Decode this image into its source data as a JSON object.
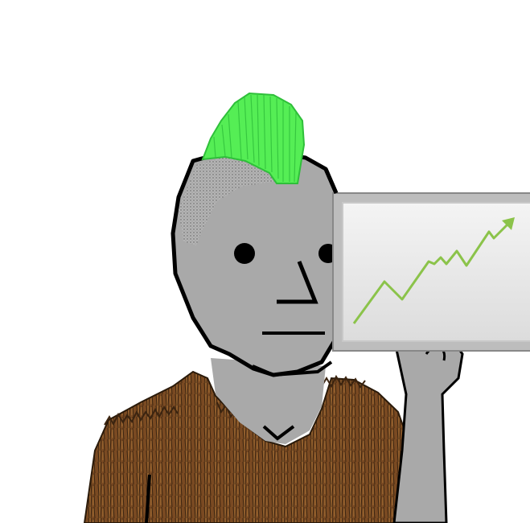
{
  "scene": {
    "subject": "npc-wojak-punk",
    "colors": {
      "background": "#ffffff",
      "skin": "#a9a9a9",
      "outline": "#000000",
      "mohawk": "#55ee55",
      "mohawk_dark": "#2fbf3a",
      "fur": "#7a4a22",
      "fur_dark": "#3b2410",
      "fur_light": "#b07a3c",
      "card_face": "#e8e8e8",
      "card_edge": "#b8b8b8",
      "trend_line": "#8bc34a"
    },
    "icons": [
      "mohawk-icon",
      "trend-arrow-icon"
    ]
  }
}
